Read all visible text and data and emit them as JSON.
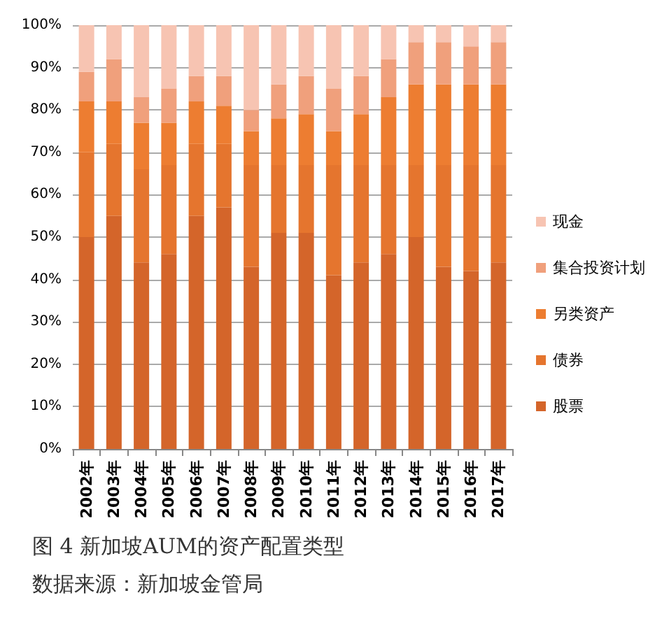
{
  "chart_data": {
    "type": "bar",
    "stacked": true,
    "title": "图 4 新加坡AUM的资产配置类型",
    "annotations": [
      "数据来源：新加坡金管局"
    ],
    "categories": [
      "2002年",
      "2003年",
      "2004年",
      "2005年",
      "2006年",
      "2007年",
      "2008年",
      "2009年",
      "2010年",
      "2011年",
      "2012年",
      "2013年",
      "2014年",
      "2015年",
      "2016年",
      "2017年"
    ],
    "series": [
      {
        "name": "股票",
        "color": "#d4652a",
        "values": [
          50,
          55,
          44,
          46,
          55,
          57,
          43,
          51,
          51,
          41,
          44,
          46,
          50,
          43,
          42,
          44
        ]
      },
      {
        "name": "债券",
        "color": "#e5752e",
        "values": [
          20,
          17,
          22,
          21,
          17,
          15,
          24,
          16,
          16,
          26,
          23,
          21,
          17,
          24,
          25,
          23
        ]
      },
      {
        "name": "另类资产",
        "color": "#ed7d31",
        "values": [
          12,
          10,
          11,
          10,
          10,
          9,
          8,
          11,
          12,
          8,
          12,
          16,
          19,
          19,
          19,
          19
        ]
      },
      {
        "name": "集合投资计划",
        "color": "#f0a07c",
        "values": [
          7,
          10,
          6,
          8,
          6,
          7,
          5,
          8,
          9,
          10,
          9,
          9,
          10,
          10,
          9,
          10
        ]
      },
      {
        "name": "现金",
        "color": "#f7c4b2",
        "values": [
          11,
          8,
          17,
          15,
          12,
          12,
          20,
          14,
          12,
          15,
          12,
          8,
          4,
          4,
          5,
          4
        ]
      }
    ],
    "ylim": [
      0,
      100
    ],
    "yticks": [
      {
        "value": 0,
        "label": "0%"
      },
      {
        "value": 10,
        "label": "10%"
      },
      {
        "value": 20,
        "label": "20%"
      },
      {
        "value": 30,
        "label": "30%"
      },
      {
        "value": 40,
        "label": "40%"
      },
      {
        "value": 50,
        "label": "50%"
      },
      {
        "value": 60,
        "label": "60%"
      },
      {
        "value": 70,
        "label": "70%"
      },
      {
        "value": 80,
        "label": "80%"
      },
      {
        "value": 90,
        "label": "90%"
      },
      {
        "value": 100,
        "label": "100%"
      }
    ],
    "grid": "y",
    "legend": "right"
  }
}
